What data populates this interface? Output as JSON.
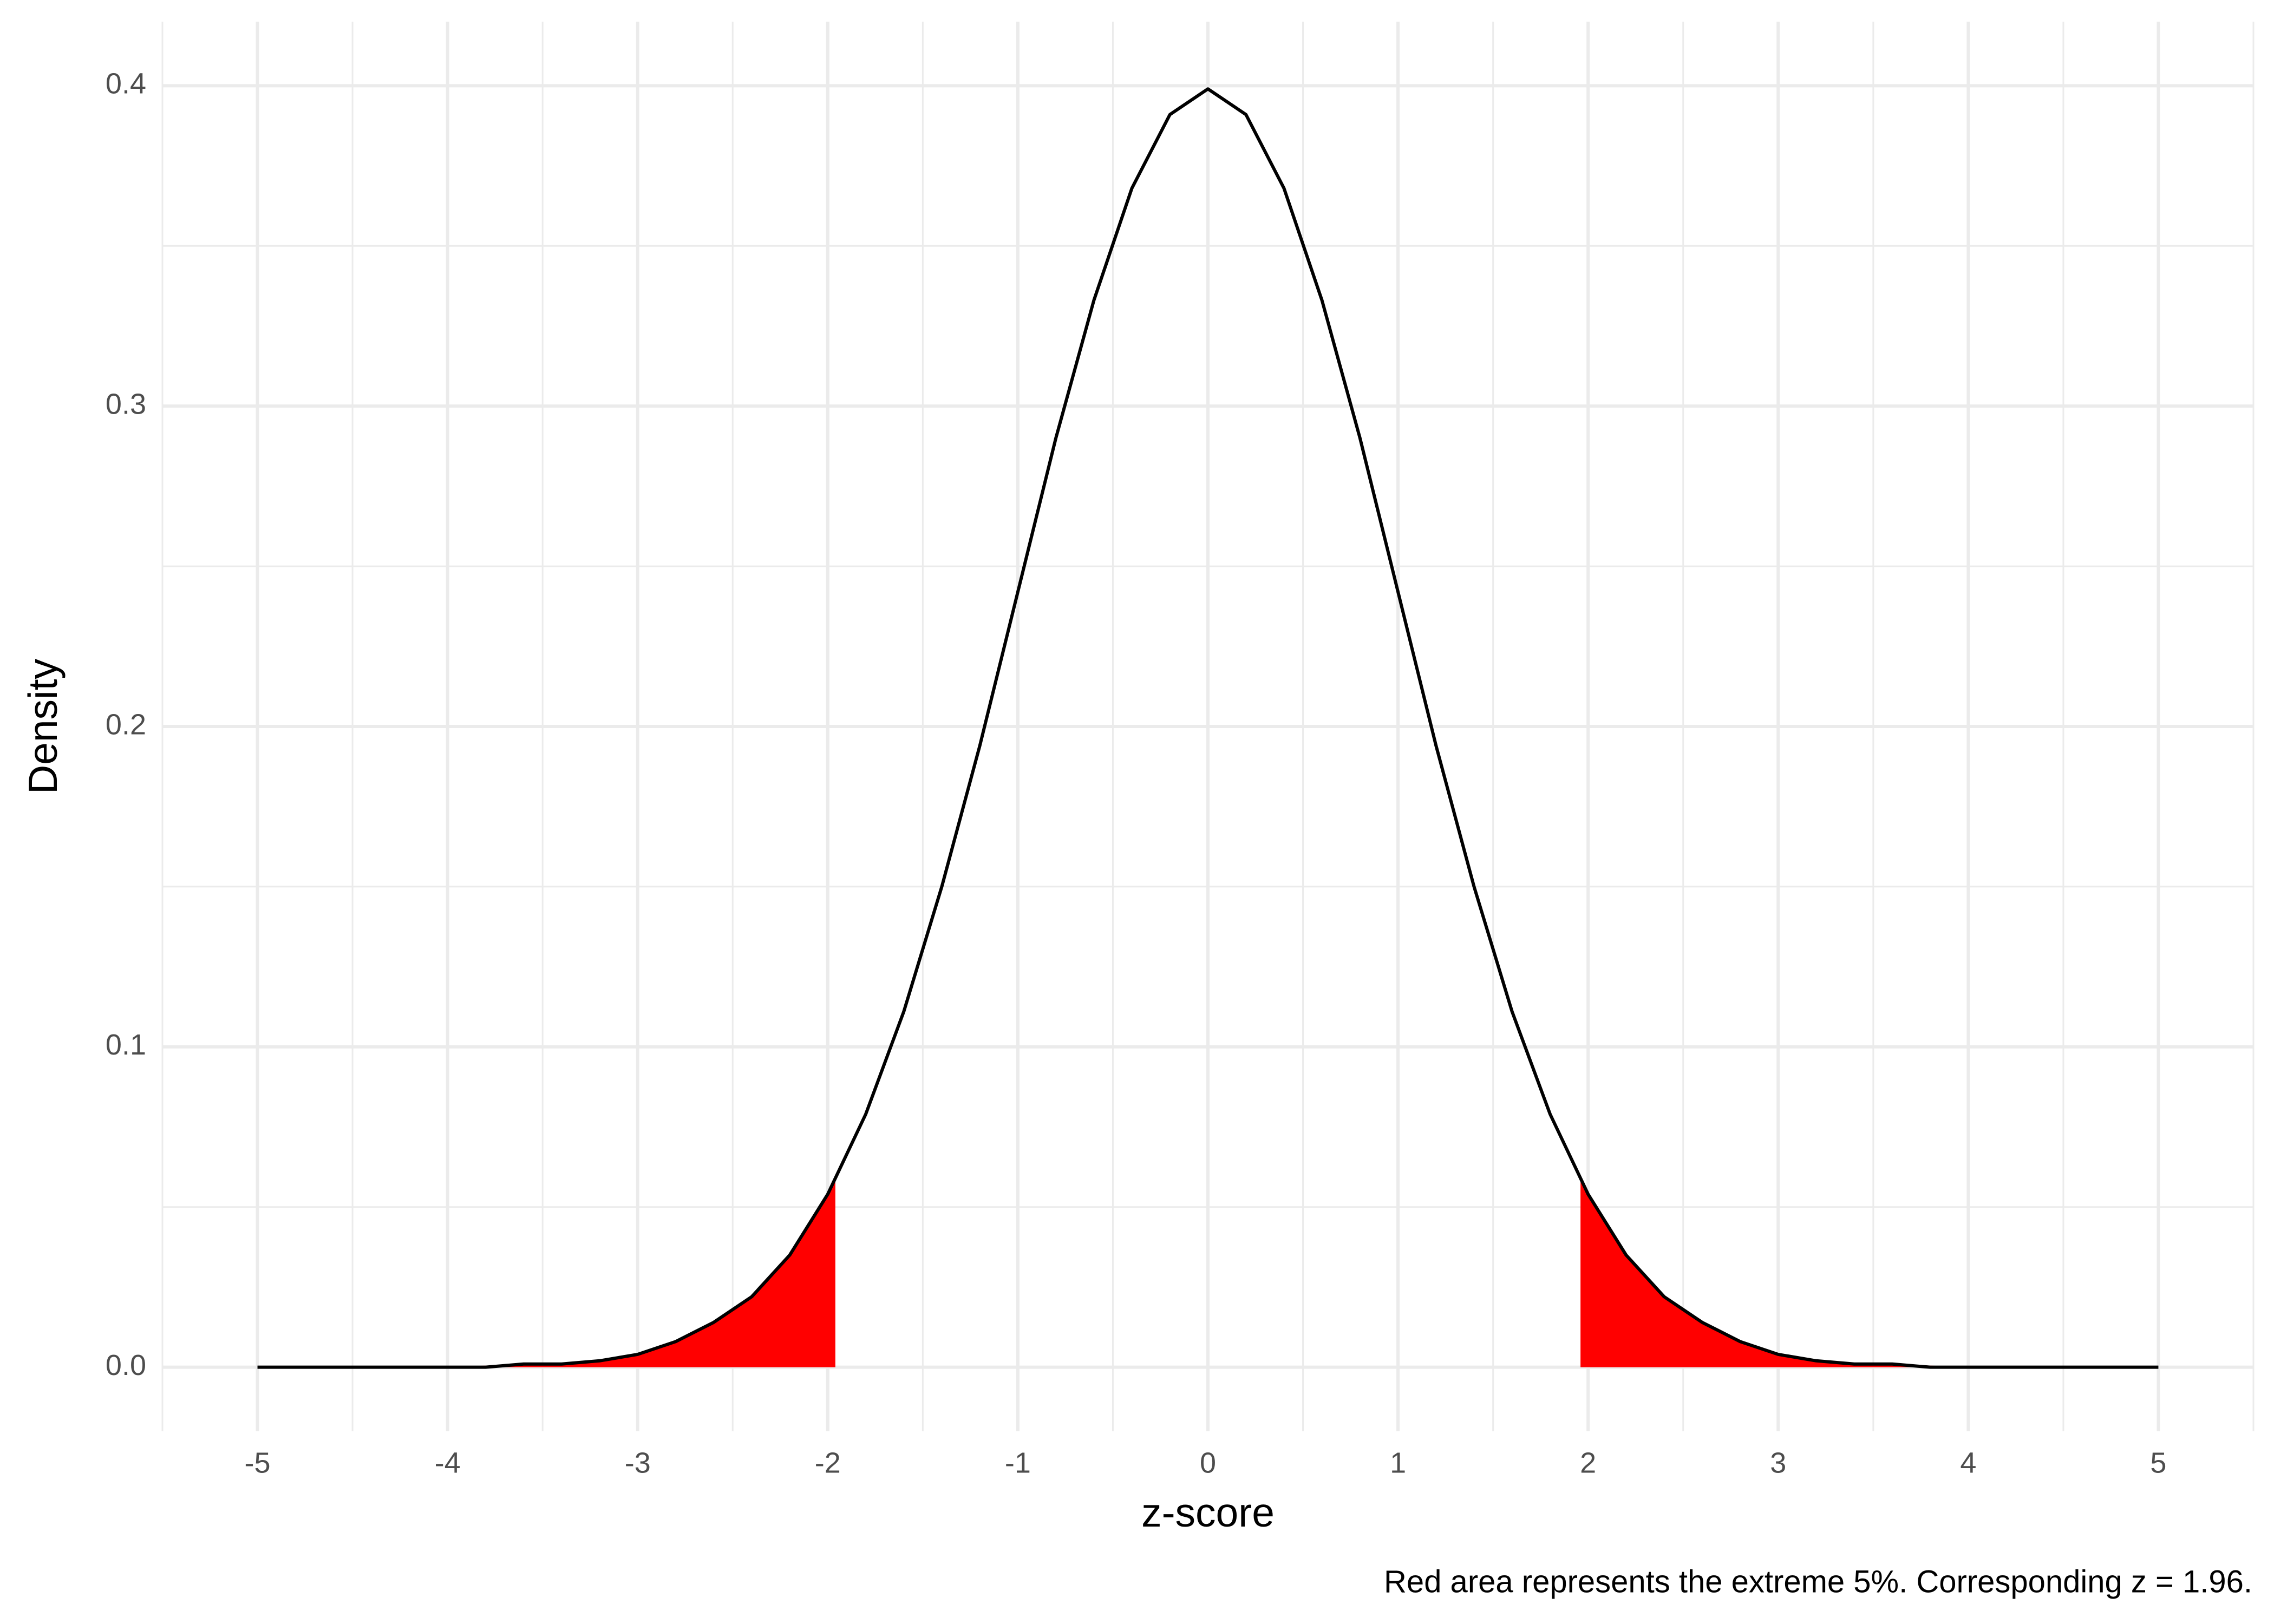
{
  "chart_data": {
    "type": "line",
    "xlabel": "z-score",
    "ylabel": "Density",
    "caption": "Red area represents the extreme 5%. Corresponding z = 1.96.",
    "xlim": [
      -5.5,
      5.5
    ],
    "ylim": [
      -0.02,
      0.42
    ],
    "xticks": [
      -5,
      -4,
      -3,
      -2,
      -1,
      0,
      1,
      2,
      3,
      4,
      5
    ],
    "yticks": [
      {
        "value": 0,
        "label": "0.0"
      },
      0.1,
      0.2,
      0.3,
      0.4
    ],
    "minor_xticks": [
      -5.5,
      -4.5,
      -3.5,
      -2.5,
      -1.5,
      -0.5,
      0.5,
      1.5,
      2.5,
      3.5,
      4.5,
      5.5
    ],
    "minor_yticks": [
      0.05,
      0.15,
      0.25,
      0.35
    ],
    "grid": true,
    "series": [
      {
        "color": "#000000",
        "x": [
          -5,
          -4.8,
          -4.6,
          -4.4,
          -4.2,
          -4,
          -3.8,
          -3.6,
          -3.4,
          -3.2,
          -3,
          -2.8,
          -2.6,
          -2.4,
          -2.2,
          -2,
          -1.8,
          -1.6,
          -1.4,
          -1.2,
          -1,
          -0.8,
          -0.6,
          -0.4,
          -0.2,
          0,
          0.2,
          0.4,
          0.6,
          0.8,
          1,
          1.2,
          1.4,
          1.6,
          1.8,
          2,
          2.2,
          2.4,
          2.6,
          2.8,
          3,
          3.2,
          3.4,
          3.6,
          3.8,
          4,
          4.2,
          4.4,
          4.6,
          4.8,
          5
        ],
        "values": [
          0,
          0,
          0,
          0,
          0,
          0,
          0,
          0.001,
          0.001,
          0.002,
          0.004,
          0.008,
          0.014,
          0.022,
          0.035,
          0.054,
          0.079,
          0.111,
          0.15,
          0.194,
          0.242,
          0.29,
          0.333,
          0.368,
          0.391,
          0.399,
          0.391,
          0.368,
          0.333,
          0.29,
          0.242,
          0.194,
          0.15,
          0.111,
          0.079,
          0.054,
          0.035,
          0.022,
          0.014,
          0.008,
          0.004,
          0.002,
          0.001,
          0.001,
          0,
          0,
          0,
          0,
          0,
          0,
          0
        ]
      }
    ],
    "areas": [
      {
        "color": "#ff0000",
        "x": [
          -5,
          -4,
          -3.6,
          -3.4,
          -3.2,
          -3,
          -2.8,
          -2.6,
          -2.4,
          -2.2,
          -2,
          -1.96
        ],
        "values": [
          0,
          0,
          0.001,
          0.001,
          0.002,
          0.004,
          0.008,
          0.014,
          0.022,
          0.035,
          0.054,
          0.058
        ]
      },
      {
        "color": "#ff0000",
        "x": [
          1.96,
          2,
          2.2,
          2.4,
          2.6,
          2.8,
          3,
          3.2,
          3.4,
          3.6,
          4,
          5
        ],
        "values": [
          0.058,
          0.054,
          0.035,
          0.022,
          0.014,
          0.008,
          0.004,
          0.002,
          0.001,
          0.001,
          0,
          0
        ]
      }
    ]
  }
}
